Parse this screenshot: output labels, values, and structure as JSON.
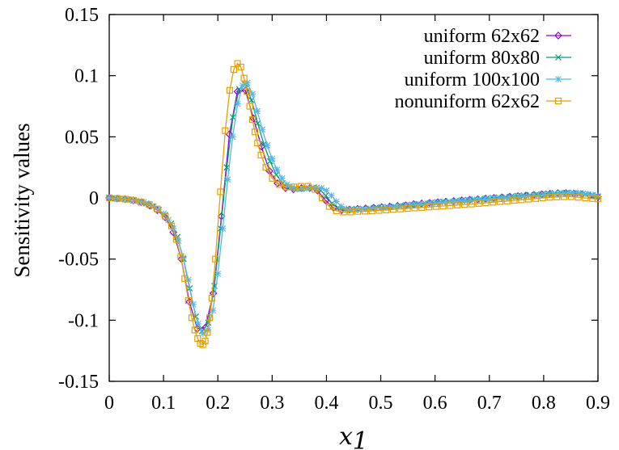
{
  "chart_data": {
    "type": "line",
    "title": "",
    "xlabel": "x_1",
    "xlabel_main": "x",
    "xlabel_sub": "1",
    "ylabel": "Sensitivity values",
    "xlim": [
      0,
      0.9
    ],
    "ylim": [
      -0.15,
      0.15
    ],
    "xticks": [
      "0",
      "0.1",
      "0.2",
      "0.3",
      "0.4",
      "0.5",
      "0.6",
      "0.7",
      "0.8",
      "0.9"
    ],
    "yticks": [
      "0.15",
      "0.1",
      "0.05",
      "0",
      "-0.05",
      "-0.1",
      "-0.15"
    ],
    "grid": false,
    "legend_position": "top-right",
    "series": [
      {
        "name": "uniform 62x62",
        "color": "#9400d3",
        "marker": "diamond",
        "x": [
          0,
          0.0148,
          0.0295,
          0.0443,
          0.059,
          0.0738,
          0.0885,
          0.1033,
          0.118,
          0.1328,
          0.1475,
          0.1623,
          0.177,
          0.1918,
          0.2066,
          0.2213,
          0.2361,
          0.2508,
          0.2656,
          0.2803,
          0.2951,
          0.3098,
          0.3246,
          0.3393,
          0.3541,
          0.3689,
          0.3836,
          0.3984,
          0.4131,
          0.4279,
          0.4426,
          0.4574,
          0.4721,
          0.4869,
          0.5016,
          0.5164,
          0.5311,
          0.5459,
          0.5607,
          0.5754,
          0.5902,
          0.6049,
          0.6197,
          0.6344,
          0.6492,
          0.6639,
          0.6787,
          0.6934,
          0.7082,
          0.723,
          0.7377,
          0.7525,
          0.7672,
          0.782,
          0.7967,
          0.8115,
          0.8262,
          0.841,
          0.8557,
          0.8705,
          0.8852,
          0.9
        ],
        "y": [
          0,
          -0.0005,
          -0.001,
          -0.002,
          -0.0035,
          -0.006,
          -0.01,
          -0.016,
          -0.028,
          -0.05,
          -0.085,
          -0.107,
          -0.106,
          -0.078,
          -0.015,
          0.052,
          0.087,
          0.088,
          0.065,
          0.042,
          0.022,
          0.012,
          0.008,
          0.007,
          0.008,
          0.008,
          0.006,
          -0.002,
          -0.008,
          -0.01,
          -0.0095,
          -0.009,
          -0.0085,
          -0.008,
          -0.0075,
          -0.007,
          -0.0065,
          -0.006,
          -0.005,
          -0.0045,
          -0.004,
          -0.0035,
          -0.003,
          -0.0025,
          -0.002,
          -0.0015,
          -0.001,
          -0.0005,
          0,
          0.0005,
          0.001,
          0.0015,
          0.002,
          0.0025,
          0.003,
          0.0035,
          0.004,
          0.004,
          0.0035,
          0.003,
          0.002,
          0.001
        ]
      },
      {
        "name": "uniform 80x80",
        "color": "#009e73",
        "marker": "cross",
        "x": [
          0,
          0.0114,
          0.0228,
          0.0342,
          0.0456,
          0.057,
          0.0684,
          0.0797,
          0.0911,
          0.1025,
          0.1139,
          0.1253,
          0.1367,
          0.1481,
          0.1595,
          0.1709,
          0.1823,
          0.1937,
          0.2051,
          0.2165,
          0.2278,
          0.2392,
          0.2506,
          0.262,
          0.2734,
          0.2848,
          0.2962,
          0.3076,
          0.319,
          0.3304,
          0.3418,
          0.3532,
          0.3646,
          0.3759,
          0.3873,
          0.3987,
          0.4101,
          0.4215,
          0.4329,
          0.4443,
          0.4557,
          0.4671,
          0.4785,
          0.4899,
          0.5013,
          0.5127,
          0.5241,
          0.5354,
          0.5468,
          0.5582,
          0.5696,
          0.581,
          0.5924,
          0.6038,
          0.6152,
          0.6266,
          0.638,
          0.6494,
          0.6608,
          0.6722,
          0.6835,
          0.6949,
          0.7063,
          0.7177,
          0.7291,
          0.7405,
          0.7519,
          0.7633,
          0.7747,
          0.7861,
          0.7975,
          0.8089,
          0.8203,
          0.8316,
          0.843,
          0.8544,
          0.8658,
          0.8772,
          0.8886,
          0.9
        ],
        "y": [
          0,
          -0.0004,
          -0.0008,
          -0.0013,
          -0.002,
          -0.003,
          -0.0045,
          -0.007,
          -0.01,
          -0.014,
          -0.021,
          -0.032,
          -0.05,
          -0.074,
          -0.097,
          -0.109,
          -0.102,
          -0.072,
          -0.025,
          0.025,
          0.066,
          0.089,
          0.093,
          0.08,
          0.061,
          0.044,
          0.03,
          0.019,
          0.012,
          0.0085,
          0.0075,
          0.0075,
          0.008,
          0.0085,
          0.007,
          0.002,
          -0.0045,
          -0.008,
          -0.0095,
          -0.0095,
          -0.009,
          -0.0088,
          -0.0085,
          -0.0082,
          -0.0078,
          -0.0074,
          -0.007,
          -0.0065,
          -0.006,
          -0.0055,
          -0.005,
          -0.0045,
          -0.004,
          -0.0036,
          -0.0032,
          -0.0028,
          -0.0024,
          -0.002,
          -0.0016,
          -0.0012,
          -0.0008,
          -0.0004,
          0,
          0.0004,
          0.0008,
          0.0012,
          0.0016,
          0.002,
          0.0024,
          0.0028,
          0.0032,
          0.0036,
          0.004,
          0.0042,
          0.0042,
          0.004,
          0.0035,
          0.003,
          0.002,
          0.001
        ]
      },
      {
        "name": "uniform 100x100",
        "color": "#56b4e9",
        "marker": "star",
        "x": [
          0,
          0.0091,
          0.0182,
          0.0273,
          0.0364,
          0.0455,
          0.0545,
          0.0636,
          0.0727,
          0.0818,
          0.0909,
          0.1,
          0.1091,
          0.1182,
          0.1273,
          0.1364,
          0.1455,
          0.1545,
          0.1636,
          0.1727,
          0.1818,
          0.1909,
          0.2,
          0.2091,
          0.2182,
          0.2273,
          0.2364,
          0.2455,
          0.2545,
          0.2636,
          0.2727,
          0.2818,
          0.2909,
          0.3,
          0.3091,
          0.3182,
          0.3273,
          0.3364,
          0.3455,
          0.3545,
          0.3636,
          0.3727,
          0.3818,
          0.3909,
          0.4,
          0.4091,
          0.4182,
          0.4273,
          0.4364,
          0.4455,
          0.4545,
          0.4636,
          0.4727,
          0.4818,
          0.4909,
          0.5,
          0.5091,
          0.5182,
          0.5273,
          0.5364,
          0.5455,
          0.5545,
          0.5636,
          0.5727,
          0.5818,
          0.5909,
          0.6,
          0.6091,
          0.6182,
          0.6273,
          0.6364,
          0.6455,
          0.6545,
          0.6636,
          0.6727,
          0.6818,
          0.6909,
          0.7,
          0.7091,
          0.7182,
          0.7273,
          0.7364,
          0.7455,
          0.7545,
          0.7636,
          0.7727,
          0.7818,
          0.7909,
          0.8,
          0.8091,
          0.8182,
          0.8273,
          0.8364,
          0.8455,
          0.8545,
          0.8636,
          0.8727,
          0.8818,
          0.8909,
          0.9
        ],
        "y": [
          0,
          -0.0003,
          -0.0006,
          -0.0009,
          -0.0013,
          -0.0018,
          -0.0025,
          -0.0035,
          -0.005,
          -0.007,
          -0.0095,
          -0.013,
          -0.018,
          -0.025,
          -0.035,
          -0.049,
          -0.067,
          -0.087,
          -0.103,
          -0.111,
          -0.108,
          -0.092,
          -0.062,
          -0.025,
          0.015,
          0.05,
          0.077,
          0.092,
          0.094,
          0.085,
          0.071,
          0.056,
          0.043,
          0.032,
          0.023,
          0.016,
          0.011,
          0.0085,
          0.0075,
          0.0075,
          0.0078,
          0.0082,
          0.0085,
          0.008,
          0.006,
          0.002,
          -0.003,
          -0.007,
          -0.009,
          -0.0096,
          -0.0096,
          -0.0093,
          -0.009,
          -0.0088,
          -0.0085,
          -0.0082,
          -0.0079,
          -0.0075,
          -0.0071,
          -0.0067,
          -0.0063,
          -0.0059,
          -0.0055,
          -0.0051,
          -0.0047,
          -0.0043,
          -0.004,
          -0.0037,
          -0.0034,
          -0.0031,
          -0.0028,
          -0.0025,
          -0.0022,
          -0.0019,
          -0.0016,
          -0.0013,
          -0.001,
          -0.0007,
          -0.0004,
          -0.0001,
          0.0002,
          0.0005,
          0.0008,
          0.0011,
          0.0014,
          0.0017,
          0.002,
          0.0023,
          0.0026,
          0.0029,
          0.0032,
          0.0035,
          0.0038,
          0.004,
          0.0041,
          0.004,
          0.0037,
          0.0032,
          0.0025,
          0.0015
        ]
      },
      {
        "name": "nonuniform 62x62",
        "color": "#e69f00",
        "marker": "square",
        "x": [
          0,
          0.0148,
          0.0295,
          0.0443,
          0.059,
          0.0738,
          0.0885,
          0.1033,
          0.1148,
          0.1236,
          0.1317,
          0.1391,
          0.1459,
          0.152,
          0.1577,
          0.1629,
          0.1678,
          0.1724,
          0.1767,
          0.1808,
          0.1849,
          0.189,
          0.1955,
          0.2048,
          0.2137,
          0.2219,
          0.2293,
          0.2362,
          0.2425,
          0.2483,
          0.2537,
          0.2588,
          0.2637,
          0.2684,
          0.2731,
          0.2795,
          0.2885,
          0.3004,
          0.3135,
          0.3266,
          0.3397,
          0.3528,
          0.3659,
          0.379,
          0.3921,
          0.4052,
          0.4183,
          0.4314,
          0.4445,
          0.4576,
          0.4707,
          0.4838,
          0.4969,
          0.51,
          0.5231,
          0.5362,
          0.5493,
          0.5624,
          0.5755,
          0.5886,
          0.6017,
          0.6148,
          0.6279,
          0.641,
          0.6541,
          0.6672,
          0.6803,
          0.6934,
          0.7065,
          0.7196,
          0.7327,
          0.7458,
          0.7589,
          0.772,
          0.7851,
          0.7982,
          0.8113,
          0.8244,
          0.8375,
          0.8506,
          0.8637,
          0.8768,
          0.89,
          0.9
        ],
        "y": [
          0,
          -0.0005,
          -0.001,
          -0.002,
          -0.0035,
          -0.0055,
          -0.009,
          -0.015,
          -0.023,
          -0.034,
          -0.048,
          -0.066,
          -0.084,
          -0.098,
          -0.108,
          -0.115,
          -0.119,
          -0.12,
          -0.117,
          -0.11,
          -0.098,
          -0.082,
          -0.05,
          0.005,
          0.055,
          0.088,
          0.105,
          0.11,
          0.107,
          0.098,
          0.087,
          0.075,
          0.064,
          0.054,
          0.045,
          0.035,
          0.025,
          0.016,
          0.011,
          0.009,
          0.009,
          0.0095,
          0.0095,
          0.007,
          0,
          -0.007,
          -0.0105,
          -0.0115,
          -0.0115,
          -0.011,
          -0.0108,
          -0.0105,
          -0.0102,
          -0.0098,
          -0.0094,
          -0.009,
          -0.0086,
          -0.0082,
          -0.0078,
          -0.0074,
          -0.007,
          -0.0066,
          -0.0062,
          -0.0058,
          -0.0054,
          -0.005,
          -0.0045,
          -0.004,
          -0.0035,
          -0.003,
          -0.0025,
          -0.002,
          -0.0015,
          -0.001,
          -0.0005,
          0,
          0.0005,
          0.0008,
          0.001,
          0.001,
          0.0005,
          0,
          -0.0005,
          -0.0008
        ]
      }
    ]
  }
}
